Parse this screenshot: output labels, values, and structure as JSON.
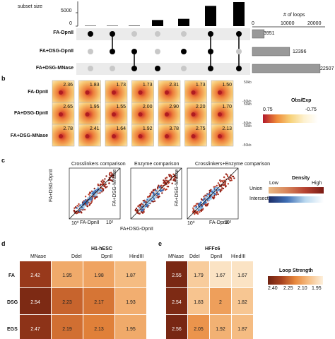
{
  "panel_a": {
    "subset_size_label": "subset size",
    "loops_label": "# of loops",
    "y_ticks": [
      "5000",
      "0"
    ],
    "x_ticks": [
      "0",
      "10000",
      "20000"
    ],
    "rows": [
      "FA-DpnII",
      "FA+DSG-DpnII",
      "FA+DSG-MNase"
    ],
    "totals": [
      "3951",
      "12396",
      "22507"
    ]
  },
  "panel_b": {
    "rows": [
      "FA-DpnII",
      "FA+DSG-DpnII",
      "FA+DSG-MNase"
    ],
    "values": [
      [
        "2.36",
        "1.83",
        "1.73",
        "1.73",
        "2.31",
        "1.73",
        "1.50"
      ],
      [
        "2.65",
        "1.95",
        "1.55",
        "2.00",
        "2.90",
        "2.20",
        "1.70"
      ],
      [
        "2.78",
        "2.41",
        "1.64",
        "1.92",
        "3.78",
        "2.75",
        "2.13"
      ]
    ],
    "scale_top": "50kb",
    "scale_bottom": "-50kb",
    "legend_title": "Obs/Exp",
    "legend_left": "0.75",
    "legend_right": "-0.75"
  },
  "panel_c": {
    "titles": [
      "Crosslinkers comparison",
      "Enzyme comparison",
      "Crosslinkers+Enzyme comparison"
    ],
    "ylabels": [
      "FA+DSG-DpnII",
      "FA+DSG-MNase",
      "FA+DSG-MNase"
    ],
    "xlabels": [
      "FA-DpnII",
      "FA+DSG-DpnII",
      "FA-DpnII"
    ],
    "tick_low": "10⁰",
    "tick_high": "10²",
    "legend_title": "Density",
    "legend_low": "Low",
    "legend_high": "High",
    "union_label": "Union",
    "intersection_label": "Intersection"
  },
  "panel_d": {
    "title": "H1-hESC",
    "columns": [
      "MNase",
      "DdeI",
      "DpnII",
      "HindIII"
    ],
    "rows": [
      "FA",
      "DSG",
      "EGS"
    ],
    "values": [
      [
        "2.42",
        "1.95",
        "1.98",
        "1.87"
      ],
      [
        "2.54",
        "2.23",
        "2.17",
        "1.93"
      ],
      [
        "2.47",
        "2.19",
        "2.13",
        "1.95"
      ]
    ]
  },
  "panel_e": {
    "title": "HFFc6",
    "columns": [
      "MNase",
      "DdeI",
      "DpnII",
      "HindIII"
    ],
    "values": [
      [
        "2.55",
        "1.79",
        "1.67",
        "1.67"
      ],
      [
        "2.54",
        "1.83",
        "2",
        "1.82"
      ],
      [
        "2.56",
        "2.05",
        "1.92",
        "1.87"
      ]
    ]
  },
  "loop_legend": {
    "title": "Loop Strength",
    "ticks": [
      "2.40",
      "2.25",
      "2.10",
      "1.95"
    ]
  },
  "panel_letters": [
    "b",
    "c",
    "d",
    "e"
  ],
  "chart_data": [
    {
      "type": "bar",
      "title": "",
      "ylabel": "subset size",
      "categories": [
        "1",
        "2",
        "3",
        "4",
        "5",
        "6",
        "7"
      ],
      "values": [
        150,
        150,
        180,
        2600,
        3100,
        8600,
        10200
      ],
      "ylim": [
        0,
        10500
      ]
    },
    {
      "type": "bar",
      "title": "",
      "xlabel": "# of loops",
      "categories": [
        "FA-DpnII",
        "FA+DSG-DpnII",
        "FA+DSG-MNase"
      ],
      "values": [
        3951,
        12396,
        22507
      ],
      "xlim": [
        0,
        23000
      ]
    }
  ]
}
